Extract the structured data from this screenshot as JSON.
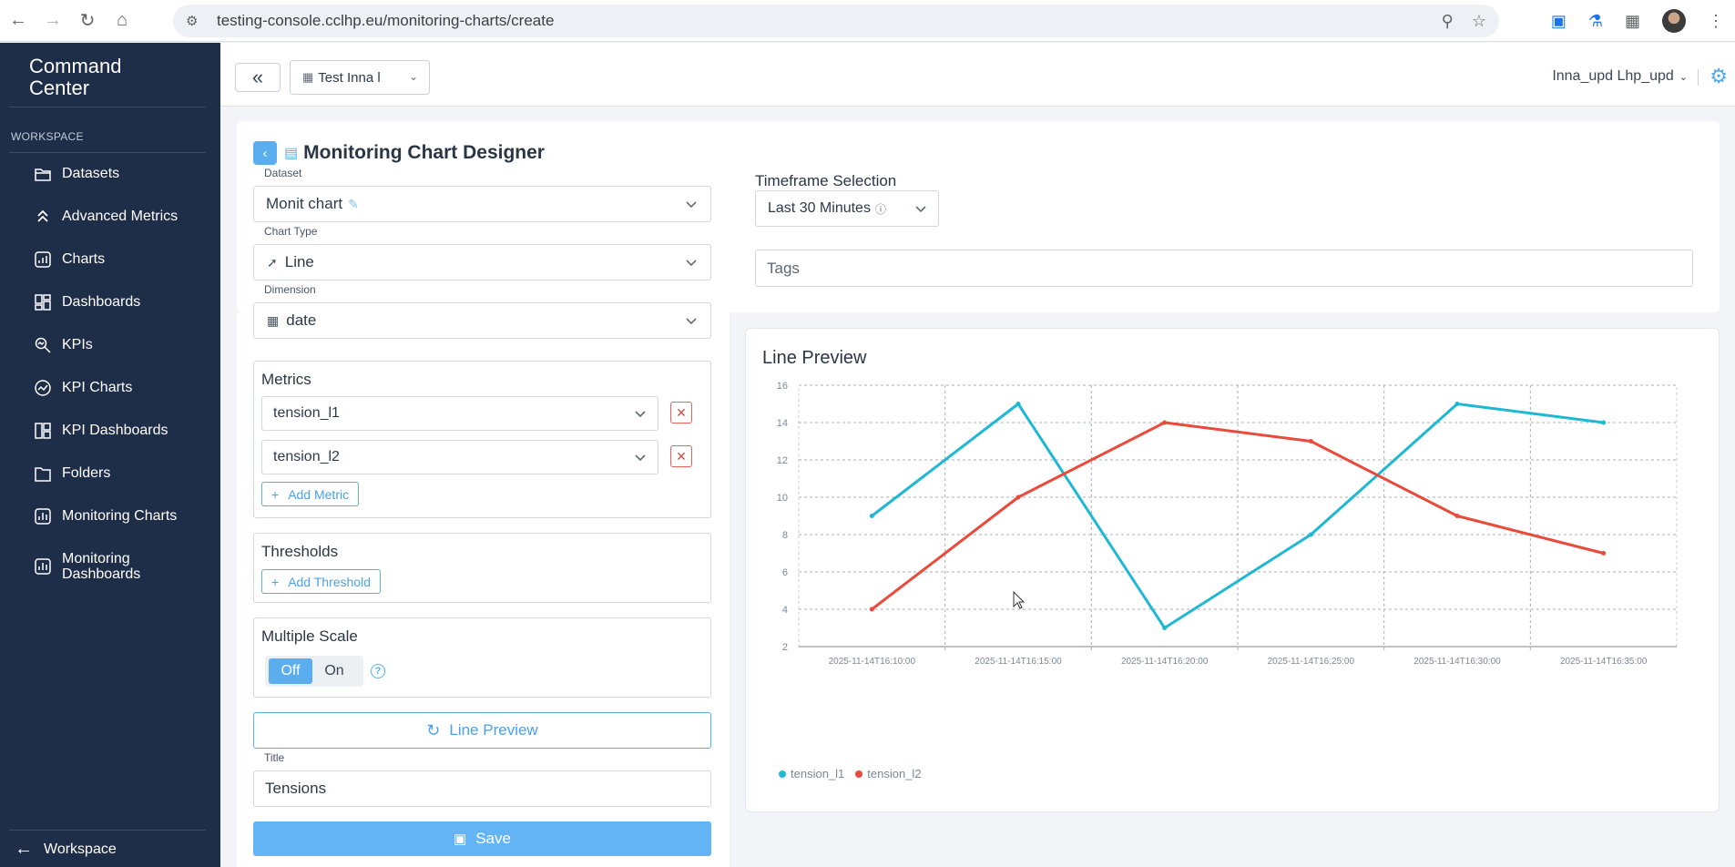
{
  "browser": {
    "url": "testing-console.cclhp.eu/monitoring-charts/create"
  },
  "sidebar": {
    "title_line1": "Command",
    "title_line2": "Center",
    "section": "WORKSPACE",
    "items": [
      {
        "label": "Datasets",
        "icon": "folder-icon"
      },
      {
        "label": "Advanced Metrics",
        "icon": "chevrons-up-icon"
      },
      {
        "label": "Charts",
        "icon": "chart-icon"
      },
      {
        "label": "Dashboards",
        "icon": "dashboard-icon"
      },
      {
        "label": "KPIs",
        "icon": "kpi-icon"
      },
      {
        "label": "KPI Charts",
        "icon": "kpi-chart-icon"
      },
      {
        "label": "KPI Dashboards",
        "icon": "kpi-dashboard-icon"
      },
      {
        "label": "Folders",
        "icon": "folder-outline-icon"
      },
      {
        "label": "Monitoring Charts",
        "icon": "monitoring-chart-icon"
      },
      {
        "label_line1": "Monitoring",
        "label_line2": "Dashboards",
        "icon": "monitoring-dashboard-icon"
      }
    ],
    "footer": "Workspace"
  },
  "header": {
    "org": "Test Inna l",
    "user": "Inna_upd Lhp_upd"
  },
  "designer": {
    "title": "Monitoring Chart Designer",
    "dataset_label": "Dataset",
    "dataset_value": "Monit chart",
    "chart_type_label": "Chart Type",
    "chart_type_value": "Line",
    "dimension_label": "Dimension",
    "dimension_value": "date",
    "timeframe_label": "Timeframe Selection",
    "timeframe_value": "Last 30 Minutes",
    "tags_placeholder": "Tags",
    "metrics_title": "Metrics",
    "metrics": [
      "tension_l1",
      "tension_l2"
    ],
    "add_metric": "Add Metric",
    "thresholds_title": "Thresholds",
    "add_threshold": "Add Threshold",
    "multiple_scale_title": "Multiple Scale",
    "toggle_off": "Off",
    "toggle_on": "On",
    "preview_button": "Line Preview",
    "title_label": "Title",
    "title_value": "Tensions",
    "save_button": "Save"
  },
  "preview": {
    "title": "Line Preview"
  },
  "chart_data": {
    "type": "line",
    "x": [
      "2025-11-14T16:10:00",
      "2025-11-14T16:15:00",
      "2025-11-14T16:20:00",
      "2025-11-14T16:25:00",
      "2025-11-14T16:30:00",
      "2025-11-14T16:35:00"
    ],
    "series": [
      {
        "name": "tension_l1",
        "color": "#1fb8d3",
        "values": [
          9,
          15,
          3,
          8,
          15,
          14
        ]
      },
      {
        "name": "tension_l2",
        "color": "#ea4a3b",
        "values": [
          4,
          10,
          14,
          13,
          9,
          7
        ]
      }
    ],
    "yticks": [
      2,
      4,
      6,
      8,
      10,
      12,
      14,
      16
    ],
    "ylim": [
      2,
      16
    ],
    "grid": true,
    "legend": "bottom-left",
    "title": "Line Preview"
  }
}
